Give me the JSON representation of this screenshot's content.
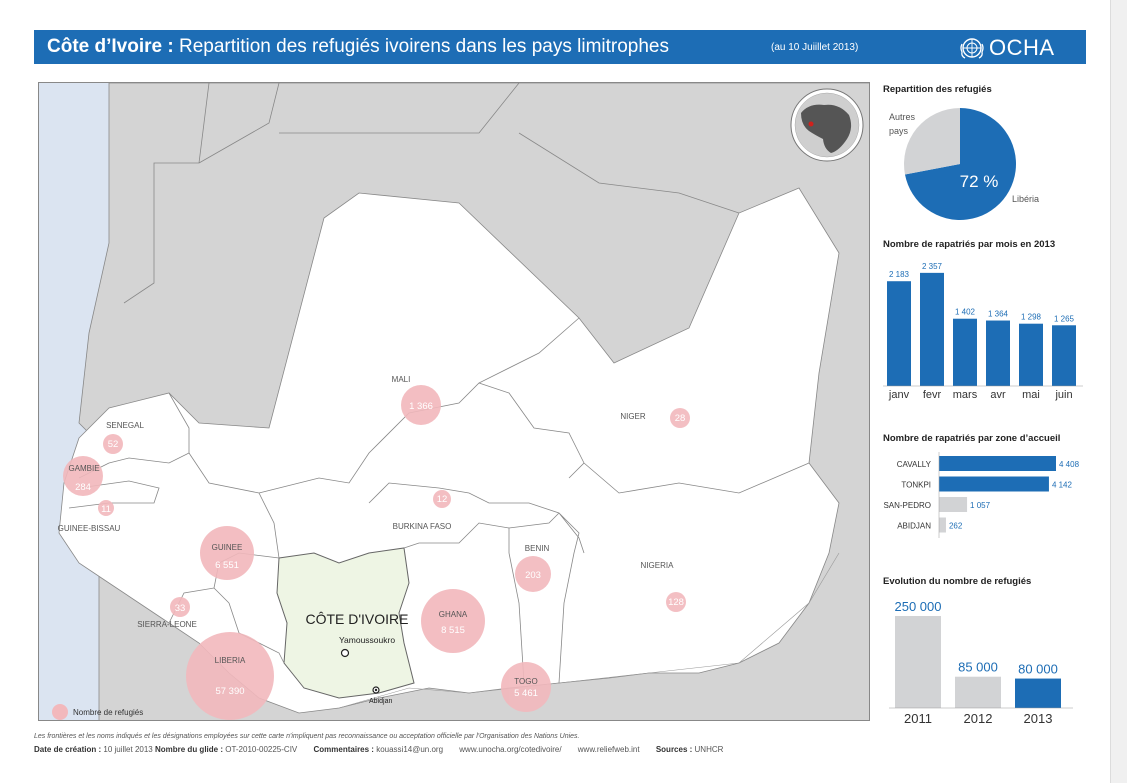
{
  "header": {
    "title_bold": "Côte d’Ivoire :",
    "title_rest": "Repartition des refugiés ivoirens dans les pays limitrophes",
    "date": "(au 10 Juiillet 2013)",
    "logo_text": "OCHA",
    "bg_color": "#1d6db5"
  },
  "map": {
    "countries": {
      "mali": "MALI",
      "niger": "NIGER",
      "senegal": "SENEGAL",
      "gambie": "GAMBIE",
      "guinee_bissau": "GUINEE-BISSAU",
      "guinee": "GUINEE",
      "sierra_leone": "SIERRA-LEONE",
      "liberia": "LIBERIA",
      "burkina": "BURKINA FASO",
      "ghana": "GHANA",
      "togo": "TOGO",
      "benin": "BENIN",
      "nigeria": "NIGERIA",
      "cote_ivoire": "CÔTE D'IVOIRE"
    },
    "cities": {
      "capital": "Yamoussoukro",
      "abidjan": "Abidjan"
    },
    "bubbles": {
      "mali": "1 366",
      "niger": "28",
      "senegal": "52",
      "gambie": "284",
      "guinee_bissau": "11",
      "guinee": "6 551",
      "sierra_leone": "33",
      "liberia": "57 390",
      "burkina": "12",
      "ghana": "8 515",
      "togo": "5 461",
      "benin": "203",
      "nigeria": "128"
    },
    "legend": "Nombre de refugiés",
    "bubble_color": "#f2b8bc",
    "cote_ivoire_color": "#eef5e4",
    "water_color": "#dbe4f1",
    "other_land_color": "#d4d4d4"
  },
  "pie": {
    "title": "Repartition des refugiés",
    "label_other_line1": "Autres",
    "label_other_line2": "pays",
    "label_liberia": "Libéria",
    "percent_label": "72 %",
    "chart_data": {
      "type": "pie",
      "labels": [
        "Libéria",
        "Autres pays"
      ],
      "values": [
        72,
        28
      ]
    }
  },
  "monthly": {
    "title": "Nombre de rapatriés par mois en 2013",
    "chart_data": {
      "type": "bar",
      "categories": [
        "janv",
        "fevr",
        "mars",
        "avr",
        "mai",
        "juin"
      ],
      "values": [
        2183,
        2357,
        1402,
        1364,
        1298,
        1265
      ],
      "labels": [
        "2 183",
        "2 357",
        "1 402",
        "1 364",
        "1 298",
        "1 265"
      ]
    }
  },
  "zones": {
    "title": "Nombre de rapatriés par zone d’accueil",
    "chart_data": {
      "type": "bar",
      "orientation": "horizontal",
      "categories": [
        "CAVALLY",
        "TONKPI",
        "SAN-PEDRO",
        "ABIDJAN"
      ],
      "values": [
        4408,
        4142,
        1057,
        262
      ],
      "labels": [
        "4 408",
        "4 142",
        "1 057",
        "262"
      ]
    }
  },
  "evolution": {
    "title": "Evolution du nombre de refugiés",
    "chart_data": {
      "type": "bar",
      "categories": [
        "2011",
        "2012",
        "2013"
      ],
      "values": [
        250000,
        85000,
        80000
      ],
      "labels": [
        "250 000",
        "85 000",
        "80 000"
      ]
    }
  },
  "colors": {
    "blue": "#1d6db5",
    "grey": "#d2d3d5"
  },
  "footer": {
    "note": "Les frontières et les noms indiqués et les désignations employées sur cette carte n'impliquent pas reconnaissance ou acceptation officielle par l'Organisation des Nations Unies.",
    "creation_label": "Date de création :",
    "creation_value": "10 juillet 2013",
    "glide_label": "Nombre du glide :",
    "glide_value": "OT-2010-00225-CIV",
    "comments_label": "Commentaires :",
    "comments_value": "kouassi14@un.org",
    "url1": "www.unocha.org/cotedivoire/",
    "url2": "www.reliefweb.int",
    "sources_label": "Sources :",
    "sources_value": "UNHCR"
  }
}
